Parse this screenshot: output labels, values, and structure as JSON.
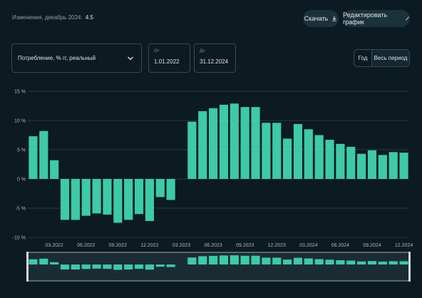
{
  "header": {
    "info_label": "Изменения, декабрь 2024:",
    "info_value": "4.5",
    "download_label": "Скачать",
    "edit_label": "Редактировать график"
  },
  "controls": {
    "indicator": "Потребление, % гг, реальный",
    "from_label": "От",
    "from_value": "1.01.2022",
    "to_label": "До",
    "to_value": "31.12.2024",
    "period_year": "Год",
    "period_all": "Весь период"
  },
  "icons": {
    "download": "download-icon",
    "edit": "pencil-icon",
    "dropdown": "chevron-down-icon"
  },
  "colors": {
    "background": "#0c1a21",
    "bar": "#3ec9a7",
    "button": "#1c323b"
  },
  "chart_data": {
    "type": "bar",
    "ylim": [
      -10,
      15
    ],
    "yticks": [
      "15 %",
      "10 %",
      "5 %",
      "0 %",
      "-5 %",
      "-10 %"
    ],
    "ytick_values": [
      15,
      10,
      5,
      0,
      -5,
      -10
    ],
    "x": [
      "01.2022",
      "02.2022",
      "03.2022",
      "04.2022",
      "05.2022",
      "06.2022",
      "07.2022",
      "08.2022",
      "09.2022",
      "10.2022",
      "11.2022",
      "12.2022",
      "01.2023",
      "02.2023",
      "03.2023",
      "04.2023",
      "05.2023",
      "06.2023",
      "07.2023",
      "08.2023",
      "09.2023",
      "10.2023",
      "11.2023",
      "12.2023",
      "01.2024",
      "02.2024",
      "03.2024",
      "04.2024",
      "05.2024",
      "06.2024",
      "07.2024",
      "08.2024",
      "09.2024",
      "10.2024",
      "11.2024",
      "12.2024"
    ],
    "values": [
      7.3,
      8.2,
      3.2,
      -7.0,
      -7.0,
      -6.3,
      -5.9,
      -6.1,
      -7.5,
      -7.0,
      -6.0,
      -7.2,
      -3.1,
      -3.6,
      null,
      9.8,
      11.6,
      12.1,
      12.7,
      12.9,
      12.3,
      12.3,
      9.6,
      9.6,
      6.9,
      9.4,
      8.5,
      7.5,
      6.7,
      6.0,
      5.5,
      4.3,
      4.9,
      4.1,
      4.6,
      4.5
    ],
    "xtick_labels": [
      "03.2022",
      "06.2022",
      "09.2022",
      "12.2022",
      "03.2023",
      "06.2023",
      "09.2023",
      "12.2023",
      "03.2024",
      "06.2024",
      "09.2024",
      "12.2024"
    ],
    "xtick_indices": [
      2,
      5,
      8,
      11,
      14,
      17,
      20,
      23,
      26,
      29,
      32,
      35
    ],
    "grid": true
  }
}
